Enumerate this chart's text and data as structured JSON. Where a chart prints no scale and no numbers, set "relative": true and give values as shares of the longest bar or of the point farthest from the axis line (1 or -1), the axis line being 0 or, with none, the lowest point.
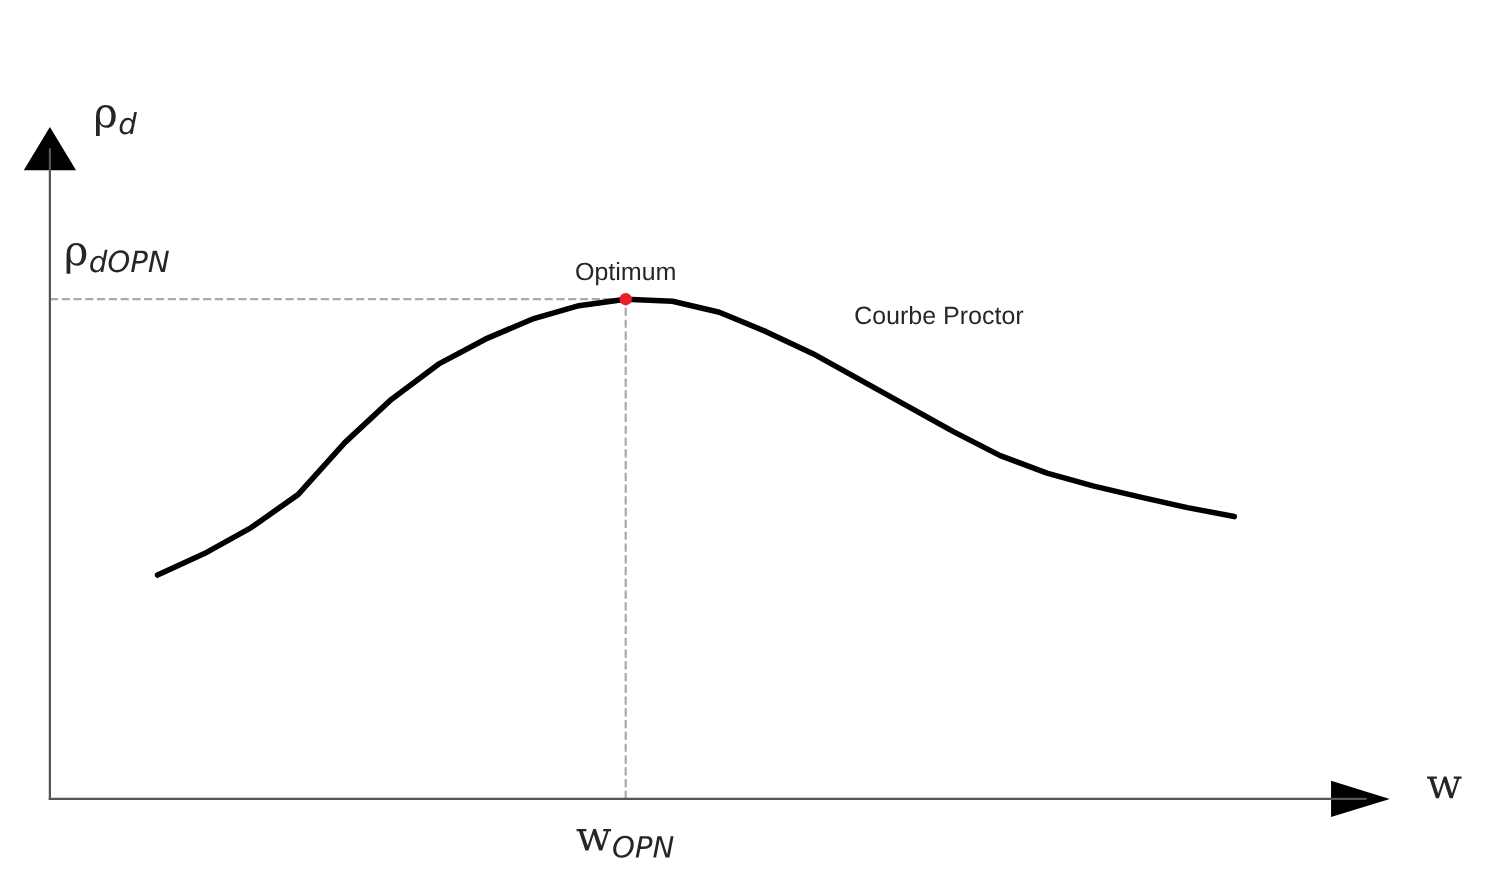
{
  "chart_data": {
    "type": "line",
    "relative": true,
    "xlabel": "w",
    "ylabel": "ρ$_{d}$",
    "categories": [
      null,
      null,
      null,
      null,
      null,
      null,
      null,
      null,
      null,
      null,
      null,
      null,
      null,
      null,
      null,
      null,
      null,
      null,
      null,
      null,
      null,
      null,
      null,
      null
    ],
    "series": [
      {
        "color": "#000000",
        "values": [
          0.448,
          0.491,
          0.543,
          0.609,
          0.713,
          0.8,
          0.87,
          0.92,
          0.96,
          0.987,
          1,
          0.996,
          0.974,
          0.935,
          0.891,
          0.839,
          0.787,
          0.735,
          0.687,
          0.652,
          0.626,
          0.604,
          0.583,
          0.565
        ]
      }
    ],
    "ref_lines": [
      {
        "axis": "y",
        "value": 1,
        "label": "ρ$_{dOPN}$",
        "color": "#aaaaaa",
        "line_style": "dashed"
      }
    ],
    "annotations": [
      {
        "text": "Optimum",
        "y": 1
      },
      "Courbe Proctor",
      "w$_{OPN}$"
    ]
  }
}
